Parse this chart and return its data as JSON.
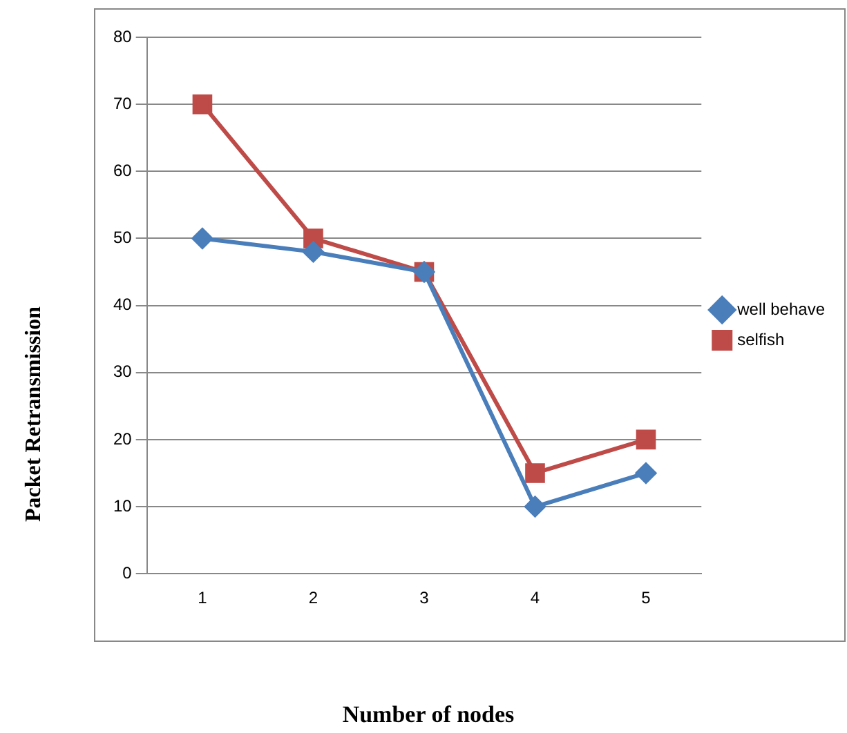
{
  "chart_data": {
    "type": "line",
    "xlabel": "Number of nodes",
    "ylabel": "Packet Retransmission",
    "categories": [
      "1",
      "2",
      "3",
      "4",
      "5"
    ],
    "series": [
      {
        "name": "well behave",
        "color": "#4a7ebb",
        "values": [
          50,
          48,
          45,
          10,
          15
        ],
        "marker": "diamond"
      },
      {
        "name": "selfish",
        "color": "#be4b48",
        "values": [
          70,
          50,
          45,
          15,
          20
        ],
        "marker": "square"
      }
    ],
    "ylim": [
      0,
      80
    ],
    "yticks": [
      0,
      10,
      20,
      30,
      40,
      50,
      60,
      70,
      80
    ],
    "grid": "y",
    "legend": "right",
    "line_style": "solid"
  }
}
